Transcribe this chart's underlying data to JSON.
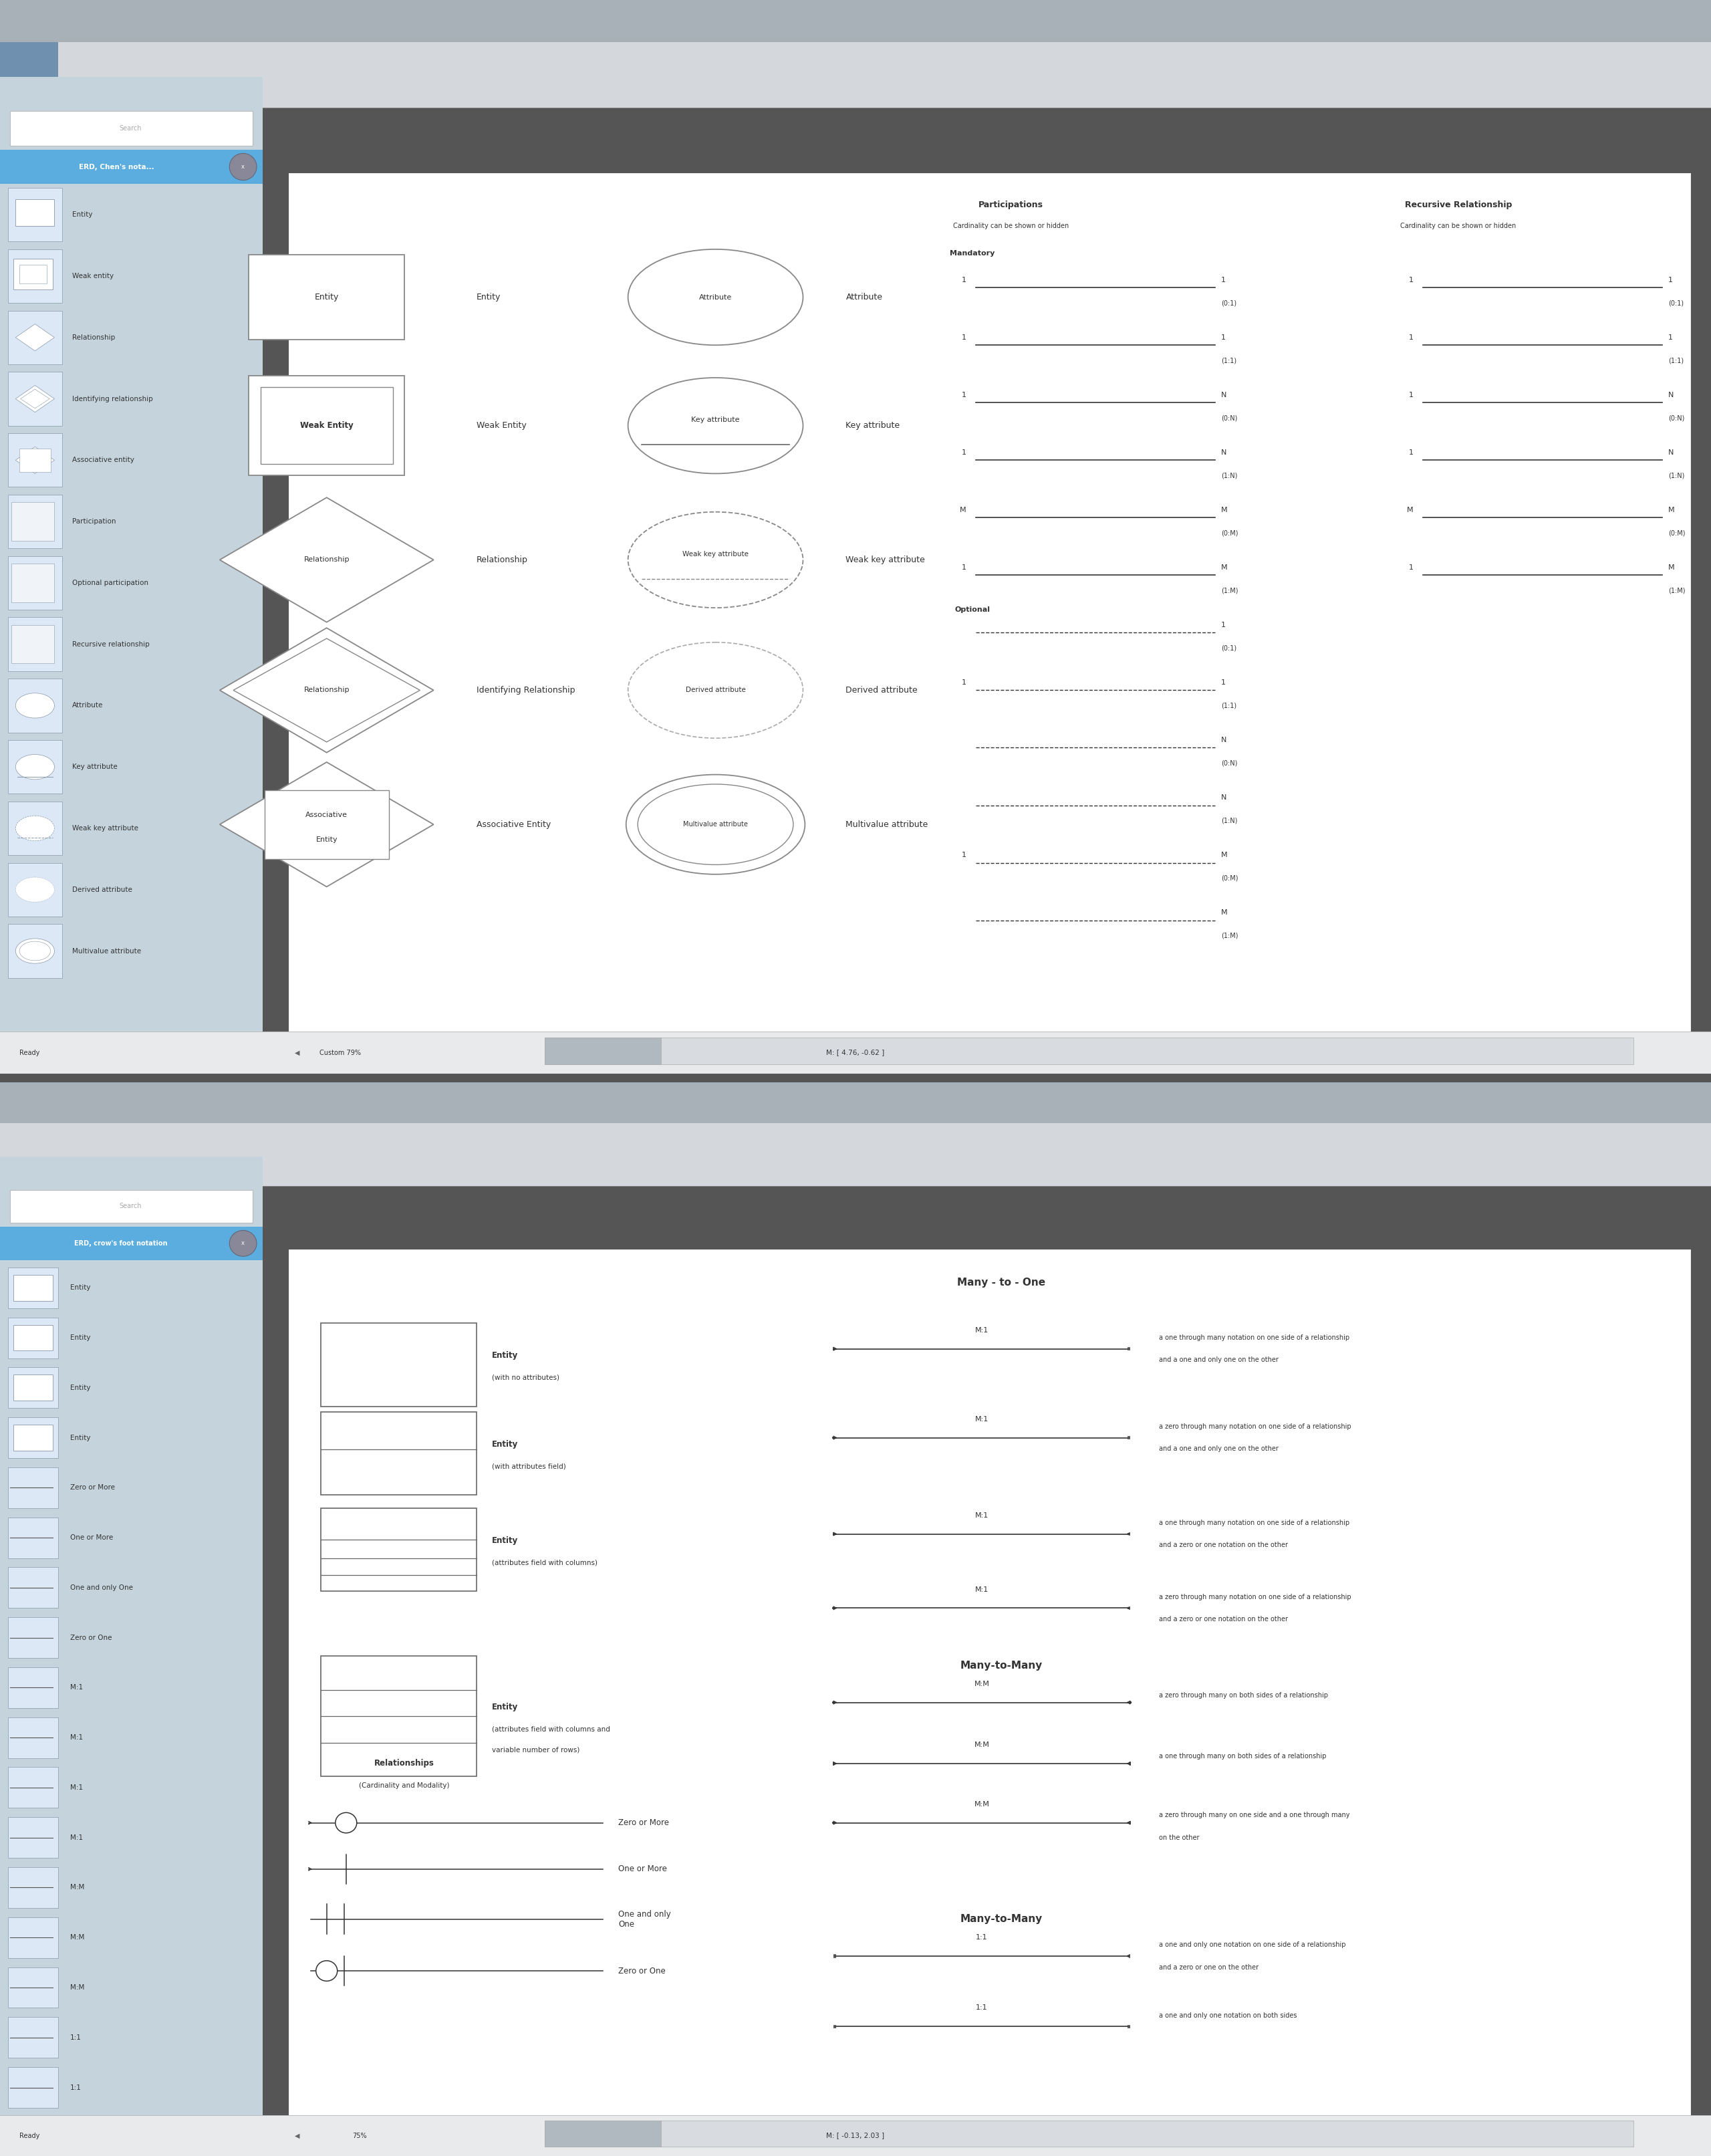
{
  "bg_teal": "#8fa8a8",
  "sidebar_bg": "#c5d3dc",
  "header_blue_light": "#90c4e8",
  "header_blue": "#5aadde",
  "toolbar_bg": "#d4d8dc",
  "toolbar_bg2": "#b8bec4",
  "white": "#ffffff",
  "canvas_border": "#555555",
  "text_dark": "#333333",
  "text_gray": "#666666",
  "shape_ec": "#777777",
  "shape_ec2": "#555555",
  "status_bg": "#e8eaec",
  "divider": "#555555",
  "top_toolbar_bg": "#a8b0b8",
  "top_toolbar_btn": "#6080a0",
  "top_panel": {
    "sidebar_items": [
      "Entity",
      "Weak entity",
      "Relationship",
      "Identifying relationship",
      "Associative entity",
      "Participation",
      "Optional participation",
      "Recursive relationship",
      "Attribute",
      "Key attribute",
      "Weak key attribute",
      "Derived attribute",
      "Multivalue attribute"
    ],
    "header_text": "ERD, Chen's nota...",
    "status_left": "Ready",
    "status_center": "M: [ 4.76, -0.62 ]",
    "status_zoom": "Custom 79%",
    "participations_title": "Participations",
    "participations_subtitle": "Cardinality can be shown or hidden",
    "recursive_title": "Recursive Relationship",
    "recursive_subtitle": "Cardinality can be shown or hidden",
    "mandatory_label": "Mandatory",
    "optional_label": "Optional",
    "mand_rows": [
      {
        "left": "1",
        "right_n": "1",
        "right_card": "(0:1)"
      },
      {
        "left": "1",
        "right_n": "1",
        "right_card": "(1:1)"
      },
      {
        "left": "1",
        "right_n": "N",
        "right_card": "(0:N)"
      },
      {
        "left": "1",
        "right_n": "N",
        "right_card": "(1:N)"
      },
      {
        "left": "M",
        "right_n": "M",
        "right_card": "(0:M)"
      },
      {
        "left": "1",
        "right_n": "M",
        "right_card": "(1:M)"
      }
    ],
    "opt_rows": [
      {
        "left": "",
        "right_n": "1",
        "right_card": "(0:1)"
      },
      {
        "left": "1",
        "right_n": "1",
        "right_card": "(1:1)"
      },
      {
        "left": "",
        "right_n": "N",
        "right_card": "(0:N)"
      },
      {
        "left": "",
        "right_n": "N",
        "right_card": "(1:N)"
      },
      {
        "left": "1",
        "right_n": "M",
        "right_card": "(0:M)"
      },
      {
        "left": "",
        "right_n": "M",
        "right_card": "(1:M)"
      }
    ]
  },
  "bottom_panel": {
    "sidebar_items": [
      "Entity",
      "Entity",
      "Entity",
      "Entity",
      "Zero or More",
      "One or More",
      "One and only One",
      "Zero or One",
      "M:1",
      "M:1",
      "M:1",
      "M:1",
      "M:M",
      "M:M",
      "M:M",
      "1:1",
      "1:1"
    ],
    "header_text": "ERD, crow's foot notation",
    "status_left": "Ready",
    "status_center": "M: [ -0.13, 2.03 ]",
    "status_zoom": "75%",
    "title_many_one": "Many - to - One",
    "title_many_many": "Many-to-Many",
    "title_many_many2": "Many-to-Many",
    "entity_shapes": [
      {
        "style": "simple",
        "label1": "Entity",
        "label2": "(with no attributes)"
      },
      {
        "style": "header",
        "label1": "Entity",
        "label2": "(with attributes field)"
      },
      {
        "style": "columns",
        "label1": "Entity",
        "label2": "(attributes field with columns)"
      },
      {
        "style": "var_rows",
        "label1": "Entity",
        "label2": "(attributes field with columns and",
        "label3": "variable number of rows)"
      }
    ],
    "rel_label": "Relationships",
    "rel_sublabel": "(Cardinality and Modality)",
    "symbols": [
      {
        "label": "Zero or More",
        "type": "crow_circle"
      },
      {
        "label": "One or More",
        "type": "crow_tick"
      },
      {
        "label": "One and only\nOne",
        "type": "two_ticks"
      },
      {
        "label": "Zero or One",
        "type": "circle_tick"
      }
    ],
    "m1_rows": [
      {
        "label": "M:1",
        "desc1": "a one through many notation on one side of a relationship",
        "desc2": "and a one and only one on the other",
        "left": "crow_tick",
        "right": "two_ticks"
      },
      {
        "label": "M:1",
        "desc1": "a zero through many notation on one side of a relationship",
        "desc2": "and a one and only one on the other",
        "left": "crow_circle",
        "right": "two_ticks"
      },
      {
        "label": "M:1",
        "desc1": "a one through many notation on one side of a relationship",
        "desc2": "and a zero or one notation on the other",
        "left": "crow_tick",
        "right": "circle_tick"
      },
      {
        "label": "M:1",
        "desc1": "a zero through many notation on one side of a relationship",
        "desc2": "and a zero or one notation on the other",
        "left": "crow_circle",
        "right": "circle_tick"
      }
    ],
    "mm_rows": [
      {
        "label": "M:M",
        "desc1": "a zero through many on both sides of a relationship",
        "left": "crow_circle",
        "right": "crow_circle"
      },
      {
        "label": "M:M",
        "desc1": "a one through many on both sides of a relationship",
        "left": "crow_tick",
        "right": "crow_tick"
      },
      {
        "label": "M:M",
        "desc1": "a zero through many on one side and a one through many",
        "desc2": "on the other",
        "left": "crow_circle",
        "right": "crow_tick"
      }
    ],
    "11_rows": [
      {
        "label": "1:1",
        "desc1": "a one and only one notation on one side of a relationship",
        "desc2": "and a zero or one on the other",
        "left": "two_ticks",
        "right": "circle_tick"
      },
      {
        "label": "1:1",
        "desc1": "a one and only one notation on both sides",
        "left": "two_ticks",
        "right": "two_ticks"
      }
    ]
  }
}
